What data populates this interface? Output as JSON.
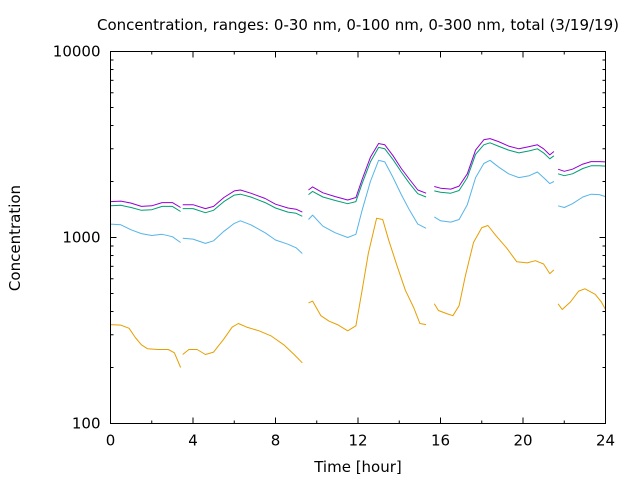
{
  "chart_data": {
    "type": "line",
    "title": "Concentration, ranges: 0-30 nm, 0-100 nm, 0-300 nm, total (3/19/19)",
    "xlabel": "Time [hour]",
    "ylabel": "Concentration",
    "xlim": [
      0,
      24
    ],
    "ylim": [
      100,
      10000
    ],
    "y_scale": "log",
    "x_ticks": [
      0,
      4,
      8,
      12,
      16,
      20,
      24
    ],
    "x_tick_labels": [
      "0",
      "4",
      "8",
      "12",
      "16",
      "20",
      "24"
    ],
    "y_ticks": [
      100,
      1000,
      10000
    ],
    "y_tick_labels": [
      "100",
      "1000",
      "10000"
    ],
    "grid": false,
    "legend": "none",
    "colors": {
      "axis": "#000000",
      "series_1": "#e69f00",
      "series_2": "#56b4e9",
      "series_3": "#009e73",
      "series_4": "#9400d3"
    },
    "series": [
      {
        "segments": [
          [
            [
              0,
              340
            ],
            [
              0.5,
              338
            ],
            [
              0.9,
              325
            ],
            [
              1.2,
              290
            ],
            [
              1.5,
              265
            ],
            [
              1.8,
              252
            ],
            [
              2.3,
              250
            ],
            [
              2.8,
              250
            ],
            [
              3.1,
              240
            ],
            [
              3.4,
              200
            ]
          ],
          [
            [
              3.5,
              235
            ],
            [
              3.8,
              250
            ],
            [
              4.2,
              250
            ],
            [
              4.6,
              235
            ],
            [
              5.0,
              242
            ],
            [
              5.5,
              285
            ],
            [
              5.9,
              330
            ],
            [
              6.2,
              345
            ],
            [
              6.6,
              330
            ],
            [
              7.2,
              315
            ],
            [
              7.8,
              295
            ],
            [
              8.4,
              265
            ],
            [
              8.9,
              235
            ],
            [
              9.3,
              212
            ]
          ],
          [
            [
              9.6,
              445
            ],
            [
              9.8,
              455
            ],
            [
              10.2,
              380
            ],
            [
              10.6,
              355
            ],
            [
              11.0,
              340
            ],
            [
              11.5,
              315
            ],
            [
              11.9,
              335
            ],
            [
              12.2,
              520
            ],
            [
              12.5,
              820
            ],
            [
              12.9,
              1270
            ],
            [
              13.2,
              1250
            ],
            [
              13.5,
              960
            ],
            [
              13.9,
              700
            ],
            [
              14.3,
              520
            ],
            [
              14.7,
              420
            ],
            [
              15.0,
              345
            ],
            [
              15.3,
              340
            ]
          ],
          [
            [
              15.7,
              440
            ],
            [
              15.9,
              405
            ],
            [
              16.3,
              390
            ],
            [
              16.6,
              380
            ],
            [
              16.9,
              430
            ],
            [
              17.2,
              620
            ],
            [
              17.6,
              940
            ],
            [
              18.0,
              1130
            ],
            [
              18.3,
              1160
            ],
            [
              18.7,
              1020
            ],
            [
              19.2,
              880
            ],
            [
              19.7,
              740
            ],
            [
              20.2,
              730
            ],
            [
              20.6,
              750
            ],
            [
              21.0,
              720
            ],
            [
              21.3,
              640
            ],
            [
              21.5,
              670
            ]
          ],
          [
            [
              21.7,
              440
            ],
            [
              21.9,
              410
            ],
            [
              22.3,
              450
            ],
            [
              22.7,
              515
            ],
            [
              23.0,
              530
            ],
            [
              23.5,
              495
            ],
            [
              23.8,
              450
            ],
            [
              24.0,
              410
            ]
          ]
        ]
      },
      {
        "segments": [
          [
            [
              0,
              1180
            ],
            [
              0.5,
              1170
            ],
            [
              1.0,
              1100
            ],
            [
              1.5,
              1050
            ],
            [
              2.0,
              1025
            ],
            [
              2.5,
              1040
            ],
            [
              3.0,
              1010
            ],
            [
              3.4,
              940
            ]
          ],
          [
            [
              3.5,
              990
            ],
            [
              4.0,
              980
            ],
            [
              4.6,
              930
            ],
            [
              5.0,
              960
            ],
            [
              5.5,
              1080
            ],
            [
              6.0,
              1190
            ],
            [
              6.3,
              1230
            ],
            [
              6.8,
              1170
            ],
            [
              7.5,
              1060
            ],
            [
              8.0,
              970
            ],
            [
              8.6,
              920
            ],
            [
              9.0,
              880
            ],
            [
              9.3,
              820
            ]
          ],
          [
            [
              9.6,
              1250
            ],
            [
              9.8,
              1320
            ],
            [
              10.3,
              1150
            ],
            [
              10.9,
              1060
            ],
            [
              11.5,
              1000
            ],
            [
              11.9,
              1040
            ],
            [
              12.2,
              1400
            ],
            [
              12.6,
              2000
            ],
            [
              13.0,
              2600
            ],
            [
              13.3,
              2550
            ],
            [
              13.7,
              2100
            ],
            [
              14.1,
              1700
            ],
            [
              14.5,
              1400
            ],
            [
              14.9,
              1180
            ],
            [
              15.3,
              1120
            ]
          ],
          [
            [
              15.7,
              1290
            ],
            [
              16.0,
              1230
            ],
            [
              16.5,
              1210
            ],
            [
              16.9,
              1250
            ],
            [
              17.3,
              1500
            ],
            [
              17.7,
              2100
            ],
            [
              18.1,
              2500
            ],
            [
              18.4,
              2600
            ],
            [
              18.8,
              2400
            ],
            [
              19.3,
              2200
            ],
            [
              19.8,
              2100
            ],
            [
              20.3,
              2150
            ],
            [
              20.7,
              2250
            ],
            [
              21.0,
              2100
            ],
            [
              21.3,
              1950
            ],
            [
              21.5,
              2000
            ]
          ],
          [
            [
              21.7,
              1480
            ],
            [
              22.0,
              1450
            ],
            [
              22.4,
              1520
            ],
            [
              22.9,
              1650
            ],
            [
              23.3,
              1710
            ],
            [
              23.7,
              1700
            ],
            [
              24.0,
              1660
            ]
          ]
        ]
      },
      {
        "segments": [
          [
            [
              0,
              1480
            ],
            [
              0.5,
              1490
            ],
            [
              1.0,
              1450
            ],
            [
              1.5,
              1400
            ],
            [
              2.0,
              1410
            ],
            [
              2.5,
              1470
            ],
            [
              3.0,
              1470
            ],
            [
              3.4,
              1380
            ]
          ],
          [
            [
              3.5,
              1430
            ],
            [
              4.0,
              1430
            ],
            [
              4.6,
              1360
            ],
            [
              5.0,
              1400
            ],
            [
              5.5,
              1560
            ],
            [
              6.0,
              1690
            ],
            [
              6.3,
              1710
            ],
            [
              6.8,
              1650
            ],
            [
              7.5,
              1540
            ],
            [
              8.0,
              1440
            ],
            [
              8.6,
              1370
            ],
            [
              9.0,
              1350
            ],
            [
              9.3,
              1300
            ]
          ],
          [
            [
              9.6,
              1700
            ],
            [
              9.8,
              1770
            ],
            [
              10.3,
              1650
            ],
            [
              10.9,
              1580
            ],
            [
              11.5,
              1520
            ],
            [
              11.9,
              1560
            ],
            [
              12.2,
              1950
            ],
            [
              12.6,
              2550
            ],
            [
              13.0,
              3050
            ],
            [
              13.3,
              3000
            ],
            [
              13.7,
              2620
            ],
            [
              14.1,
              2250
            ],
            [
              14.5,
              1950
            ],
            [
              14.9,
              1720
            ],
            [
              15.3,
              1650
            ]
          ],
          [
            [
              15.7,
              1780
            ],
            [
              16.0,
              1750
            ],
            [
              16.5,
              1730
            ],
            [
              16.9,
              1790
            ],
            [
              17.3,
              2100
            ],
            [
              17.7,
              2800
            ],
            [
              18.1,
              3150
            ],
            [
              18.4,
              3230
            ],
            [
              18.8,
              3100
            ],
            [
              19.3,
              2950
            ],
            [
              19.8,
              2850
            ],
            [
              20.3,
              2920
            ],
            [
              20.7,
              3000
            ],
            [
              21.0,
              2850
            ],
            [
              21.3,
              2650
            ],
            [
              21.5,
              2750
            ]
          ],
          [
            [
              21.7,
              2200
            ],
            [
              22.0,
              2150
            ],
            [
              22.4,
              2200
            ],
            [
              22.9,
              2350
            ],
            [
              23.3,
              2430
            ],
            [
              23.7,
              2430
            ],
            [
              24.0,
              2420
            ]
          ]
        ]
      },
      {
        "segments": [
          [
            [
              0,
              1560
            ],
            [
              0.5,
              1570
            ],
            [
              1.0,
              1530
            ],
            [
              1.5,
              1470
            ],
            [
              2.0,
              1480
            ],
            [
              2.5,
              1540
            ],
            [
              3.0,
              1540
            ],
            [
              3.4,
              1450
            ]
          ],
          [
            [
              3.5,
              1500
            ],
            [
              4.0,
              1500
            ],
            [
              4.6,
              1430
            ],
            [
              5.0,
              1470
            ],
            [
              5.5,
              1640
            ],
            [
              6.0,
              1780
            ],
            [
              6.3,
              1800
            ],
            [
              6.8,
              1730
            ],
            [
              7.5,
              1620
            ],
            [
              8.0,
              1510
            ],
            [
              8.6,
              1440
            ],
            [
              9.0,
              1420
            ],
            [
              9.3,
              1370
            ]
          ],
          [
            [
              9.6,
              1800
            ],
            [
              9.8,
              1870
            ],
            [
              10.3,
              1740
            ],
            [
              10.9,
              1660
            ],
            [
              11.5,
              1590
            ],
            [
              11.9,
              1640
            ],
            [
              12.2,
              2050
            ],
            [
              12.6,
              2700
            ],
            [
              13.0,
              3200
            ],
            [
              13.3,
              3150
            ],
            [
              13.7,
              2750
            ],
            [
              14.1,
              2350
            ],
            [
              14.5,
              2050
            ],
            [
              14.9,
              1800
            ],
            [
              15.3,
              1730
            ]
          ],
          [
            [
              15.7,
              1880
            ],
            [
              16.0,
              1840
            ],
            [
              16.5,
              1820
            ],
            [
              16.9,
              1890
            ],
            [
              17.3,
              2200
            ],
            [
              17.7,
              2950
            ],
            [
              18.1,
              3350
            ],
            [
              18.4,
              3400
            ],
            [
              18.8,
              3280
            ],
            [
              19.3,
              3100
            ],
            [
              19.8,
              3000
            ],
            [
              20.3,
              3080
            ],
            [
              20.7,
              3150
            ],
            [
              21.0,
              3000
            ],
            [
              21.3,
              2780
            ],
            [
              21.5,
              2900
            ]
          ],
          [
            [
              21.7,
              2330
            ],
            [
              22.0,
              2270
            ],
            [
              22.4,
              2330
            ],
            [
              22.9,
              2480
            ],
            [
              23.3,
              2560
            ],
            [
              23.7,
              2560
            ],
            [
              24.0,
              2550
            ]
          ]
        ]
      }
    ]
  }
}
